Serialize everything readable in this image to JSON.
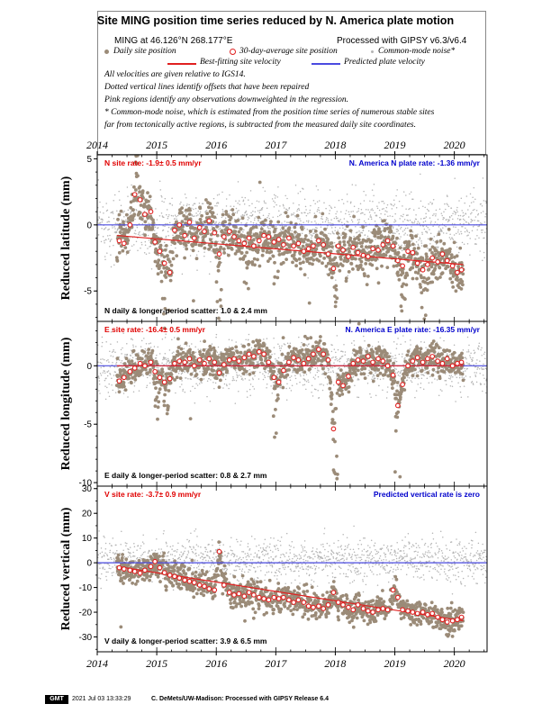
{
  "header": {
    "title": "Site MING position time series reduced by N. America plate motion",
    "site_location": "MING at 46.126°N 268.177°E",
    "processing": "Processed with GIPSY v6.3/v6.4",
    "legend": {
      "daily": "Daily site position",
      "avg30": "30-day-average site position",
      "common_mode": "Common-mode noise*",
      "best_fit": "Best-fitting site velocity",
      "predicted": "Predicted plate velocity"
    },
    "notes": [
      "All velocities are given relative to IGS14.",
      "Dotted vertical lines identify offsets that have been repaired",
      "Pink regions identify any observations downweighted in the regression.",
      "* Common-mode noise, which is estimated from the position time series of numerous stable sites",
      "far from tectonically active regions, is subtracted from the measured daily site coordinates."
    ]
  },
  "footer": {
    "logo": "GMT",
    "timestamp": "2021 Jul 03 13:33:29",
    "credit": "C. DeMets/UW-Madison: Processed with GIPSY Release 6.4"
  },
  "colors": {
    "daily": "#9b8b78",
    "common_mode": "#b4b4b4",
    "avg30_edge": "#e02020",
    "best_fit": "#e02020",
    "predicted": "#4a4ae0",
    "site_rate_text": "#e00000",
    "plate_rate_text": "#0000cc"
  },
  "chart_data": [
    {
      "type": "scatter",
      "component": "N",
      "ylabel": "Reduced latitude (mm)",
      "xlim": [
        2014.0,
        2020.55
      ],
      "ylim": [
        -7.3,
        5.3
      ],
      "yticks": [
        -5,
        0,
        5
      ],
      "xticks": [
        2014,
        2015,
        2016,
        2017,
        2018,
        2019,
        2020
      ],
      "site_rate": "N site rate:  -1.9± 0.5 mm/yr",
      "plate_rate": "N. America N plate rate: -1.36 mm/yr",
      "scatter_label": "N daily & longer-period scatter:   1.0 &   2.4 mm",
      "daily_start": 2014.33,
      "daily_end": 2020.15,
      "fit_line": [
        [
          2014.33,
          -0.8
        ],
        [
          2020.15,
          -3.0
        ]
      ],
      "predicted_line": [
        [
          2014.0,
          0
        ],
        [
          2020.55,
          0
        ]
      ],
      "avg30": [
        [
          2014.37,
          -1.2
        ],
        [
          2014.45,
          -1.4
        ],
        [
          2014.55,
          0.0
        ],
        [
          2014.63,
          2.3
        ],
        [
          2014.72,
          1.9
        ],
        [
          2014.8,
          0.8
        ],
        [
          2014.9,
          1.0
        ],
        [
          2014.97,
          -1.3
        ],
        [
          2015.05,
          -2.0
        ],
        [
          2015.13,
          -2.9
        ],
        [
          2015.22,
          -3.6
        ],
        [
          2015.3,
          -0.4
        ],
        [
          2015.38,
          0.0
        ],
        [
          2015.47,
          -0.8
        ],
        [
          2015.55,
          0.2
        ],
        [
          2015.63,
          -1.0
        ],
        [
          2015.72,
          -0.2
        ],
        [
          2015.8,
          -0.5
        ],
        [
          2015.88,
          0.3
        ],
        [
          2015.97,
          -0.6
        ],
        [
          2016.05,
          -2.2
        ],
        [
          2016.13,
          -0.9
        ],
        [
          2016.22,
          -0.5
        ],
        [
          2016.3,
          -0.9
        ],
        [
          2016.38,
          -1.2
        ],
        [
          2016.47,
          -1.4
        ],
        [
          2016.55,
          -1.0
        ],
        [
          2016.63,
          -1.6
        ],
        [
          2016.72,
          -1.2
        ],
        [
          2016.8,
          -0.8
        ],
        [
          2016.88,
          -0.9
        ],
        [
          2016.97,
          -1.3
        ],
        [
          2017.05,
          -1.1
        ],
        [
          2017.13,
          -1.5
        ],
        [
          2017.22,
          -1.0
        ],
        [
          2017.3,
          -1.6
        ],
        [
          2017.38,
          -1.4
        ],
        [
          2017.47,
          -2.0
        ],
        [
          2017.55,
          -1.8
        ],
        [
          2017.63,
          -1.6
        ],
        [
          2017.72,
          -1.2
        ],
        [
          2017.8,
          -1.5
        ],
        [
          2017.88,
          -2.2
        ],
        [
          2017.97,
          -3.3
        ],
        [
          2018.05,
          -1.6
        ],
        [
          2018.13,
          -1.9
        ],
        [
          2018.22,
          -2.4
        ],
        [
          2018.3,
          -1.7
        ],
        [
          2018.38,
          -2.1
        ],
        [
          2018.47,
          -2.3
        ],
        [
          2018.55,
          -2.4
        ],
        [
          2018.63,
          -1.8
        ],
        [
          2018.72,
          -1.9
        ],
        [
          2018.8,
          -1.5
        ],
        [
          2018.88,
          -1.2
        ],
        [
          2018.97,
          -1.6
        ],
        [
          2019.05,
          -2.7
        ],
        [
          2019.13,
          -3.1
        ],
        [
          2019.22,
          -2.0
        ],
        [
          2019.3,
          -2.1
        ],
        [
          2019.38,
          -2.9
        ],
        [
          2019.47,
          -3.4
        ],
        [
          2019.55,
          -3.0
        ],
        [
          2019.63,
          -2.5
        ],
        [
          2019.72,
          -2.8
        ],
        [
          2019.8,
          -2.2
        ],
        [
          2019.88,
          -2.7
        ],
        [
          2019.97,
          -3.1
        ],
        [
          2020.05,
          -3.6
        ],
        [
          2020.12,
          -3.4
        ]
      ],
      "dips": [
        [
          2014.42,
          1.8,
          0.05
        ],
        [
          2014.65,
          2.5,
          0.04
        ],
        [
          2015.15,
          -4.0,
          0.07
        ],
        [
          2016.05,
          -4.0,
          0.05
        ],
        [
          2016.5,
          -1.5,
          0.05
        ],
        [
          2017.0,
          -2.0,
          0.04
        ],
        [
          2018.0,
          -2.5,
          0.05
        ],
        [
          2019.15,
          -2.5,
          0.06
        ],
        [
          2019.5,
          -2.0,
          0.05
        ]
      ]
    },
    {
      "type": "scatter",
      "component": "E",
      "ylabel": "Reduced longitude (mm)",
      "xlim": [
        2014.0,
        2020.55
      ],
      "ylim": [
        -10.3,
        3.8
      ],
      "yticks": [
        -10,
        -5,
        0
      ],
      "xticks": [
        2014,
        2015,
        2016,
        2017,
        2018,
        2019,
        2020
      ],
      "site_rate": "E site rate:  -16.4± 0.5 mm/yr",
      "plate_rate": "N. America E plate rate: -16.35 mm/yr",
      "scatter_label": "E daily & longer-period scatter:   0.8 &   2.7 mm",
      "daily_start": 2014.33,
      "daily_end": 2020.15,
      "fit_line": [
        [
          2014.33,
          0.0
        ],
        [
          2020.15,
          0.0
        ]
      ],
      "predicted_line": [
        [
          2014.0,
          0
        ],
        [
          2020.55,
          0
        ]
      ],
      "avg30": [
        [
          2014.37,
          -1.3
        ],
        [
          2014.45,
          -1.0
        ],
        [
          2014.55,
          -0.5
        ],
        [
          2014.63,
          -0.2
        ],
        [
          2014.72,
          0.2
        ],
        [
          2014.8,
          0.0
        ],
        [
          2014.9,
          0.3
        ],
        [
          2014.97,
          -0.5
        ],
        [
          2015.05,
          -1.0
        ],
        [
          2015.13,
          -1.4
        ],
        [
          2015.22,
          -1.1
        ],
        [
          2015.3,
          0.2
        ],
        [
          2015.38,
          0.4
        ],
        [
          2015.47,
          0.3
        ],
        [
          2015.55,
          0.6
        ],
        [
          2015.63,
          0.0
        ],
        [
          2015.72,
          0.5
        ],
        [
          2015.8,
          0.2
        ],
        [
          2015.88,
          0.6
        ],
        [
          2015.97,
          0.3
        ],
        [
          2016.05,
          -0.6
        ],
        [
          2016.13,
          0.1
        ],
        [
          2016.22,
          0.5
        ],
        [
          2016.3,
          0.6
        ],
        [
          2016.38,
          0.4
        ],
        [
          2016.47,
          0.7
        ],
        [
          2016.55,
          1.0
        ],
        [
          2016.63,
          0.8
        ],
        [
          2016.72,
          1.2
        ],
        [
          2016.8,
          1.0
        ],
        [
          2016.88,
          0.3
        ],
        [
          2016.97,
          -1.0
        ],
        [
          2017.05,
          -1.4
        ],
        [
          2017.13,
          -0.4
        ],
        [
          2017.22,
          0.3
        ],
        [
          2017.3,
          0.7
        ],
        [
          2017.38,
          0.5
        ],
        [
          2017.47,
          0.2
        ],
        [
          2017.55,
          0.6
        ],
        [
          2017.63,
          1.0
        ],
        [
          2017.72,
          1.4
        ],
        [
          2017.8,
          1.0
        ],
        [
          2017.88,
          0.5
        ],
        [
          2017.97,
          -5.4
        ],
        [
          2018.05,
          -1.4
        ],
        [
          2018.13,
          -1.7
        ],
        [
          2018.22,
          -0.9
        ],
        [
          2018.3,
          0.2
        ],
        [
          2018.38,
          0.5
        ],
        [
          2018.47,
          0.4
        ],
        [
          2018.55,
          0.8
        ],
        [
          2018.63,
          0.3
        ],
        [
          2018.72,
          0.6
        ],
        [
          2018.8,
          0.4
        ],
        [
          2018.88,
          0.0
        ],
        [
          2018.97,
          -0.8
        ],
        [
          2019.05,
          -3.4
        ],
        [
          2019.13,
          -1.6
        ],
        [
          2019.22,
          0.0
        ],
        [
          2019.3,
          0.4
        ],
        [
          2019.38,
          0.7
        ],
        [
          2019.47,
          0.3
        ],
        [
          2019.55,
          0.6
        ],
        [
          2019.63,
          0.8
        ],
        [
          2019.72,
          0.4
        ],
        [
          2019.8,
          0.2
        ],
        [
          2019.88,
          0.6
        ],
        [
          2019.97,
          0.0
        ],
        [
          2020.05,
          0.2
        ],
        [
          2020.12,
          0.3
        ]
      ],
      "dips": [
        [
          2015.0,
          -2.0,
          0.05
        ],
        [
          2015.15,
          -2.0,
          0.05
        ],
        [
          2017.0,
          -3.0,
          0.04
        ],
        [
          2018.0,
          -7.0,
          0.04
        ],
        [
          2019.05,
          -5.0,
          0.05
        ]
      ]
    },
    {
      "type": "scatter",
      "component": "V",
      "ylabel": "Reduced vertical (mm)",
      "xlim": [
        2014.0,
        2020.55
      ],
      "ylim": [
        -36,
        31
      ],
      "yticks": [
        -30,
        -20,
        -10,
        0,
        10,
        20,
        30
      ],
      "xticks": [
        2014,
        2015,
        2016,
        2017,
        2018,
        2019,
        2020
      ],
      "site_rate": "V site rate:  -3.7± 0.9 mm/yr",
      "plate_rate": "Predicted vertical rate is zero",
      "scatter_label": "V daily & longer-period scatter:   3.9 &   6.5 mm",
      "daily_start": 2014.33,
      "daily_end": 2020.15,
      "fit_line": [
        [
          2014.33,
          -1.5
        ],
        [
          2020.15,
          -23.5
        ]
      ],
      "predicted_line": [
        [
          2014.0,
          0
        ],
        [
          2020.55,
          0
        ]
      ],
      "avg30": [
        [
          2014.37,
          -2.0
        ],
        [
          2014.45,
          -2.5
        ],
        [
          2014.55,
          -3.0
        ],
        [
          2014.63,
          -3.5
        ],
        [
          2014.72,
          -4.2
        ],
        [
          2014.8,
          -3.0
        ],
        [
          2014.9,
          -1.5
        ],
        [
          2014.97,
          0.5
        ],
        [
          2015.05,
          -2.0
        ],
        [
          2015.13,
          -4.0
        ],
        [
          2015.22,
          -5.0
        ],
        [
          2015.3,
          -5.5
        ],
        [
          2015.38,
          -6.2
        ],
        [
          2015.47,
          -7.0
        ],
        [
          2015.55,
          -7.5
        ],
        [
          2015.63,
          -8.0
        ],
        [
          2015.72,
          -9.0
        ],
        [
          2015.8,
          -9.5
        ],
        [
          2015.88,
          -10.5
        ],
        [
          2015.97,
          -11.0
        ],
        [
          2016.05,
          4.5
        ],
        [
          2016.13,
          -9.0
        ],
        [
          2016.22,
          -12.0
        ],
        [
          2016.3,
          -13.0
        ],
        [
          2016.38,
          -12.5
        ],
        [
          2016.47,
          -13.5
        ],
        [
          2016.55,
          -12.0
        ],
        [
          2016.63,
          -13.0
        ],
        [
          2016.72,
          -14.0
        ],
        [
          2016.8,
          -14.5
        ],
        [
          2016.88,
          -15.0
        ],
        [
          2016.97,
          -14.0
        ],
        [
          2017.05,
          -14.5
        ],
        [
          2017.13,
          -14.0
        ],
        [
          2017.22,
          -15.0
        ],
        [
          2017.3,
          -16.0
        ],
        [
          2017.38,
          -15.0
        ],
        [
          2017.47,
          -16.0
        ],
        [
          2017.55,
          -17.5
        ],
        [
          2017.63,
          -18.0
        ],
        [
          2017.72,
          -17.5
        ],
        [
          2017.8,
          -18.5
        ],
        [
          2017.88,
          -17.0
        ],
        [
          2017.97,
          -12.0
        ],
        [
          2018.05,
          -16.0
        ],
        [
          2018.13,
          -17.0
        ],
        [
          2018.22,
          -18.0
        ],
        [
          2018.3,
          -19.0
        ],
        [
          2018.38,
          -17.0
        ],
        [
          2018.47,
          -18.5
        ],
        [
          2018.55,
          -19.5
        ],
        [
          2018.63,
          -20.0
        ],
        [
          2018.72,
          -19.0
        ],
        [
          2018.8,
          -18.5
        ],
        [
          2018.88,
          -19.0
        ],
        [
          2018.97,
          -11.0
        ],
        [
          2019.05,
          -14.0
        ],
        [
          2019.13,
          -19.0
        ],
        [
          2019.22,
          -19.5
        ],
        [
          2019.3,
          -20.0
        ],
        [
          2019.38,
          -20.5
        ],
        [
          2019.47,
          -20.0
        ],
        [
          2019.55,
          -21.0
        ],
        [
          2019.63,
          -20.5
        ],
        [
          2019.72,
          -22.0
        ],
        [
          2019.8,
          -23.0
        ],
        [
          2019.88,
          -24.0
        ],
        [
          2019.97,
          -23.5
        ],
        [
          2020.05,
          -23.0
        ],
        [
          2020.12,
          -22.0
        ]
      ],
      "dips": []
    }
  ]
}
